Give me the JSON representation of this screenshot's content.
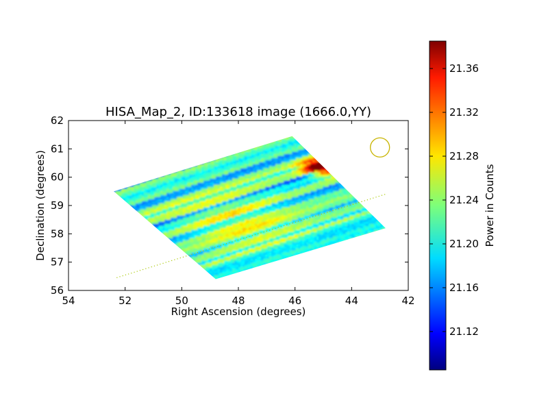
{
  "chart_data": {
    "type": "heatmap",
    "title": "HISA_Map_2, ID:133618 image (1666.0,YY)",
    "xlabel": "Right Ascension (degrees)",
    "ylabel": "Declination (degrees)",
    "xlim": [
      54,
      42
    ],
    "ylim": [
      56,
      62
    ],
    "x_ticks": [
      54,
      52,
      50,
      48,
      46,
      44,
      42
    ],
    "y_ticks": [
      56,
      57,
      58,
      59,
      60,
      61,
      62
    ],
    "x_tick_labels": [
      "54",
      "52",
      "50",
      "48",
      "46",
      "44",
      "42"
    ],
    "y_tick_labels": [
      "56",
      "57",
      "58",
      "59",
      "60",
      "61",
      "62"
    ],
    "grid": false,
    "colormap": "jet",
    "colorbar": {
      "label": "Power in Counts",
      "vmin": 21.085,
      "vmax": 21.385,
      "ticks": [
        21.12,
        21.16,
        21.2,
        21.24,
        21.28,
        21.32,
        21.36
      ],
      "tick_labels": [
        "21.12",
        "21.16",
        "21.20",
        "21.24",
        "21.28",
        "21.32",
        "21.36"
      ]
    },
    "map_region": {
      "corners_ra_dec": [
        [
          52.4,
          59.5
        ],
        [
          46.1,
          61.45
        ],
        [
          42.8,
          58.2
        ],
        [
          48.8,
          56.4
        ]
      ],
      "typical_value": 21.2,
      "peak_value": 21.38,
      "peak_location_ra_dec": [
        45.0,
        60.4
      ]
    },
    "beam_circle": {
      "center_ra_dec": [
        43.0,
        61.05
      ],
      "color": "#c8b400"
    },
    "dotted_line": {
      "points_ra_dec": [
        [
          52.3,
          56.45
        ],
        [
          42.8,
          59.4
        ]
      ],
      "color": "#a8c800"
    }
  }
}
